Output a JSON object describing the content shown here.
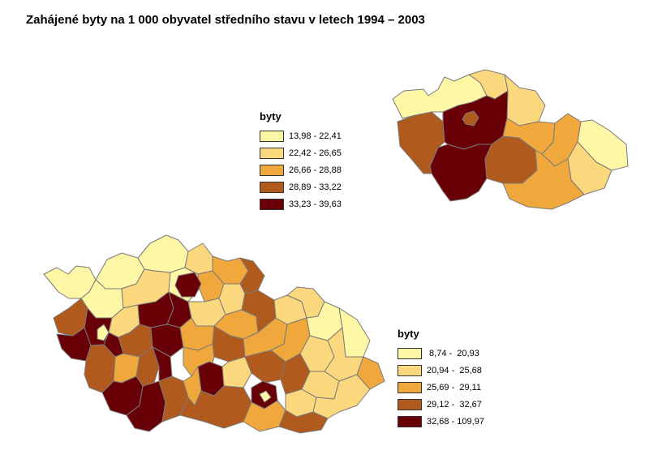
{
  "title": "Zahájené byty na 1 000 obyvatel středního stavu v letech 1994 – 2003",
  "colors": {
    "c1": "#fdf7a6",
    "c2": "#fbd77e",
    "c3": "#f0a83d",
    "c4": "#b05a1e",
    "c5": "#6a0007",
    "border": "#7a7a7a"
  },
  "legend_regions": {
    "title": "byty",
    "items": [
      {
        "label": "13,98 - 22,41",
        "color": "#fdf7a6"
      },
      {
        "label": "22,42 - 26,65",
        "color": "#fbd77e"
      },
      {
        "label": "26,66 - 28,88",
        "color": "#f0a83d"
      },
      {
        "label": "28,89 - 33,22",
        "color": "#b05a1e"
      },
      {
        "label": "33,23 - 39,63",
        "color": "#6a0007"
      }
    ]
  },
  "legend_districts": {
    "title": "byty",
    "items": [
      {
        "label": " 8,74 -  20,93",
        "color": "#fdf7a6"
      },
      {
        "label": "20,94 -  25,68",
        "color": "#fbd77e"
      },
      {
        "label": "25,69 -  29,11",
        "color": "#f0a83d"
      },
      {
        "label": "29,12 -  32,67",
        "color": "#b05a1e"
      },
      {
        "label": "32,68 - 109,97",
        "color": "#6a0007"
      }
    ]
  }
}
